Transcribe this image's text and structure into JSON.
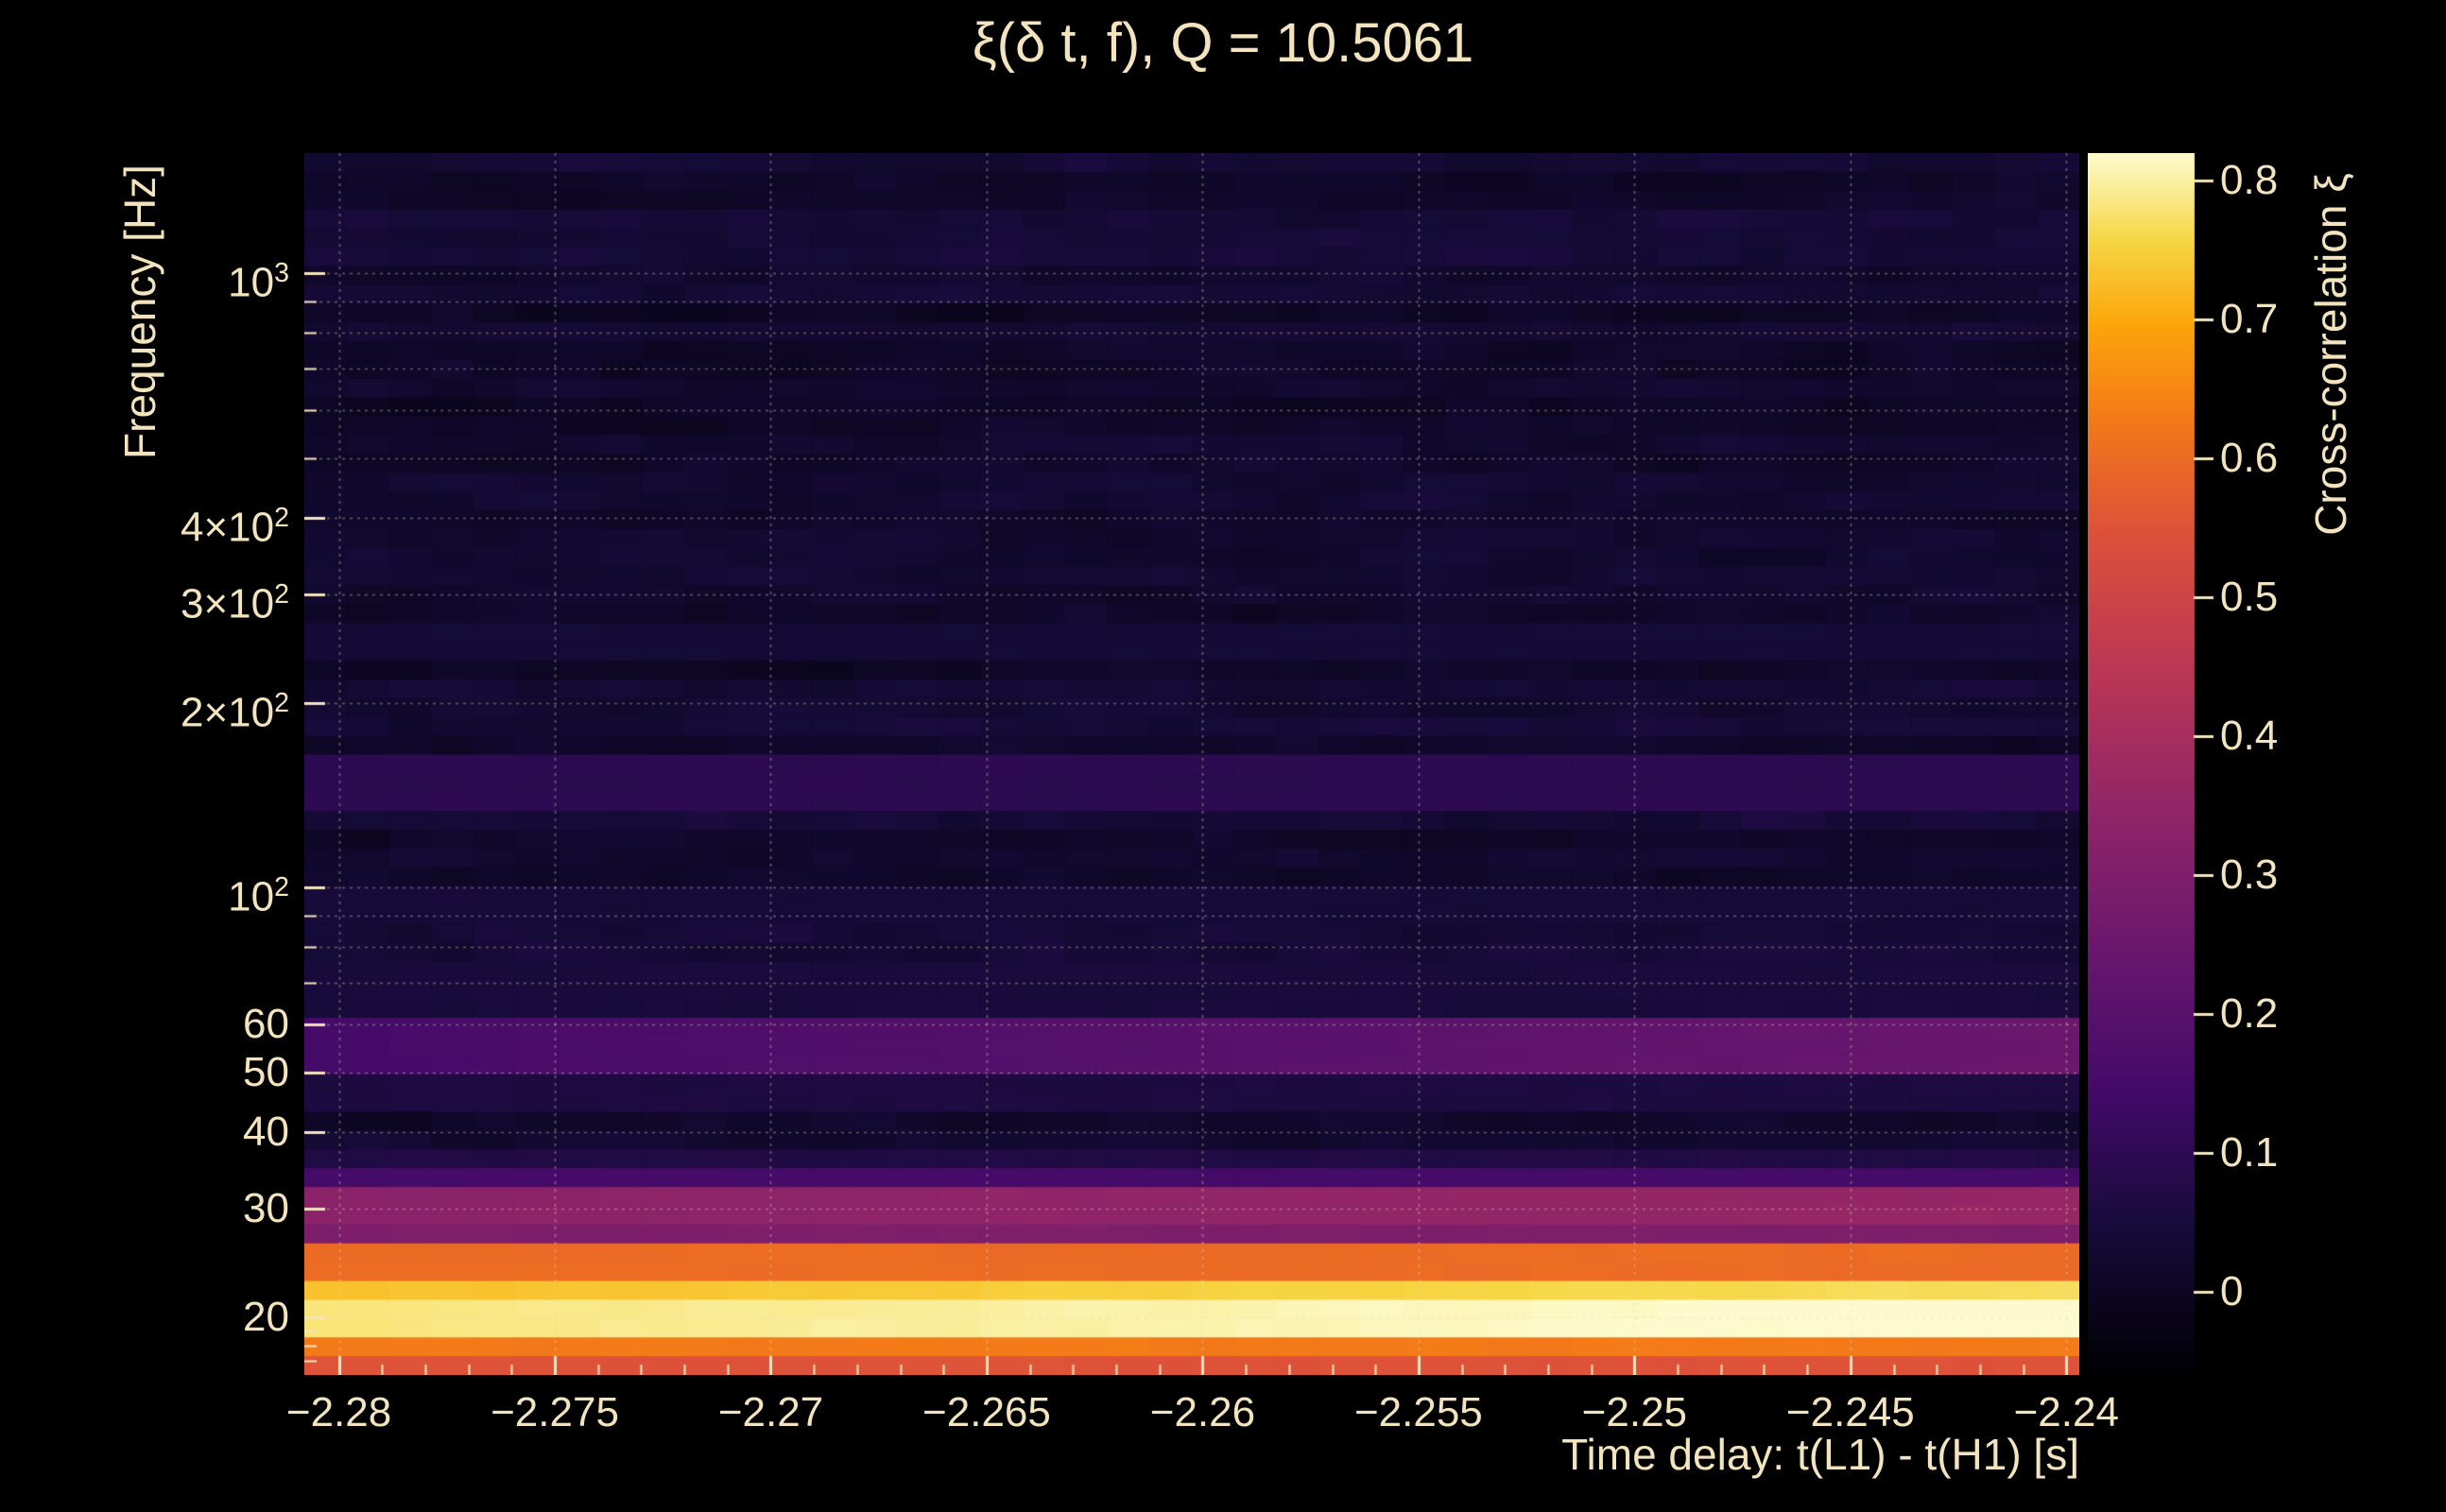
{
  "colors": {
    "background": "#000000",
    "text": "#f3e4bd",
    "grid": "#e8dcc0"
  },
  "chart_data": {
    "type": "heatmap",
    "title": "ξ(δ t, f), Q = 10.5061",
    "xlabel": "Time delay: t(L1) - t(H1) [s]",
    "ylabel": "Frequency [Hz]",
    "colorbar_label": "Cross-correlation ξ",
    "x_range": [
      -2.2808,
      -2.2397
    ],
    "x_minor_step": 0.001,
    "x_ticks": [
      {
        "value": -2.28,
        "label": "−2.28"
      },
      {
        "value": -2.275,
        "label": "−2.275"
      },
      {
        "value": -2.27,
        "label": "−2.27"
      },
      {
        "value": -2.265,
        "label": "−2.265"
      },
      {
        "value": -2.26,
        "label": "−2.26"
      },
      {
        "value": -2.255,
        "label": "−2.255"
      },
      {
        "value": -2.25,
        "label": "−2.25"
      },
      {
        "value": -2.245,
        "label": "−2.245"
      },
      {
        "value": -2.24,
        "label": "−2.24"
      }
    ],
    "y_scale": "log",
    "y_range_hz": [
      16.1,
      1570
    ],
    "y_ticks": [
      {
        "value": 1000,
        "base": "10",
        "exp": "3"
      },
      {
        "value": 400,
        "base": "4×10",
        "exp": "2"
      },
      {
        "value": 300,
        "base": "3×10",
        "exp": "2"
      },
      {
        "value": 200,
        "base": "2×10",
        "exp": "2"
      },
      {
        "value": 100,
        "base": "10",
        "exp": "2"
      },
      {
        "value": 60,
        "base": "60"
      },
      {
        "value": 50,
        "base": "50"
      },
      {
        "value": 40,
        "base": "40"
      },
      {
        "value": 30,
        "base": "30"
      },
      {
        "value": 20,
        "base": "20"
      }
    ],
    "y_grid_hz": [
      20,
      30,
      40,
      50,
      60,
      70,
      80,
      90,
      100,
      200,
      300,
      400,
      500,
      600,
      700,
      800,
      900,
      1000
    ],
    "y_minor_ticks_hz": [
      17,
      18,
      19,
      20,
      30,
      40,
      50,
      60,
      70,
      80,
      90,
      100,
      200,
      300,
      400,
      500,
      600,
      700,
      800,
      900,
      1000
    ],
    "z_range": [
      -0.06,
      0.82
    ],
    "colorbar_ticks": [
      {
        "value": 0.0,
        "label": "0"
      },
      {
        "value": 0.1,
        "label": "0.1"
      },
      {
        "value": 0.2,
        "label": "0.2"
      },
      {
        "value": 0.3,
        "label": "0.3"
      },
      {
        "value": 0.4,
        "label": "0.4"
      },
      {
        "value": 0.5,
        "label": "0.5"
      },
      {
        "value": 0.6,
        "label": "0.6"
      },
      {
        "value": 0.7,
        "label": "0.7"
      },
      {
        "value": 0.8,
        "label": "0.8"
      }
    ],
    "colormap_stops": [
      [
        0.0,
        "#000004"
      ],
      [
        0.12,
        "#160b39"
      ],
      [
        0.23,
        "#420a68"
      ],
      [
        0.35,
        "#6a176e"
      ],
      [
        0.47,
        "#932667"
      ],
      [
        0.58,
        "#bc3754"
      ],
      [
        0.69,
        "#dd513a"
      ],
      [
        0.78,
        "#f37819"
      ],
      [
        0.86,
        "#fca50a"
      ],
      [
        0.93,
        "#f6d746"
      ],
      [
        1.0,
        "#fdfbce"
      ]
    ],
    "bands": [
      {
        "f_lo": 16.1,
        "f_hi": 17.2,
        "xi": 0.55
      },
      {
        "f_lo": 17.2,
        "f_hi": 18.8,
        "xi": 0.63
      },
      {
        "f_lo": 18.8,
        "f_hi": 21.6,
        "xi": 0.78,
        "x_gain": 0.05
      },
      {
        "f_lo": 21.6,
        "f_hi": 23.4,
        "xi": 0.73,
        "x_gain": 0.04
      },
      {
        "f_lo": 23.4,
        "f_hi": 26.3,
        "xi": 0.6
      },
      {
        "f_lo": 26.3,
        "f_hi": 27.7,
        "xi": 0.3
      },
      {
        "f_lo": 27.7,
        "f_hi": 31.6,
        "xi": 0.33,
        "x_gain": 0.03
      },
      {
        "f_lo": 31.6,
        "f_hi": 34.8,
        "xi": 0.15
      },
      {
        "f_lo": 34.8,
        "f_hi": 38.0,
        "xi": 0.07
      },
      {
        "f_lo": 44.0,
        "f_hi": 50.0,
        "xi": 0.06
      },
      {
        "f_lo": 50.0,
        "f_hi": 63.0,
        "xi": 0.15,
        "x_gain": 0.1
      },
      {
        "f_lo": 63.0,
        "f_hi": 74.0,
        "xi": 0.05
      },
      {
        "f_lo": 88.0,
        "f_hi": 103.0,
        "xi": 0.045
      },
      {
        "f_lo": 135.0,
        "f_hi": 163.0,
        "xi": 0.095
      },
      {
        "f_lo": 235.0,
        "f_hi": 275.0,
        "xi": 0.04
      }
    ],
    "noise_background_xi": 0.02
  }
}
